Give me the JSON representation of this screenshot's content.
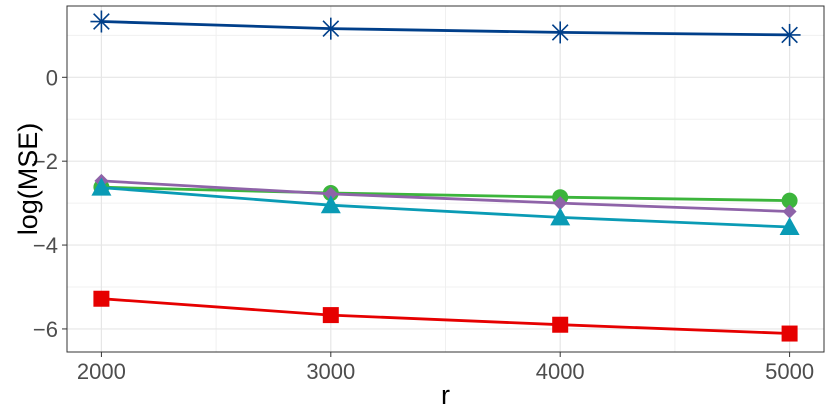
{
  "chart_data": {
    "type": "line",
    "xlabel": "r",
    "ylabel": "log(MSE)",
    "x": [
      2000,
      3000,
      4000,
      5000
    ],
    "xlim": [
      1850,
      5150
    ],
    "ylim": [
      -6.55,
      1.7
    ],
    "x_ticks": [
      2000,
      3000,
      4000,
      5000
    ],
    "y_ticks": [
      -6,
      -4,
      -2,
      0
    ],
    "y_tick_labels": [
      "−6",
      "−4",
      "−2",
      "0"
    ],
    "grid": true,
    "legend": "none",
    "series": [
      {
        "color": "#003f8a",
        "marker": "asterisk",
        "values": [
          1.33,
          1.16,
          1.07,
          1.01
        ]
      },
      {
        "color": "#3cb53c",
        "marker": "circle",
        "values": [
          -2.62,
          -2.76,
          -2.86,
          -2.94
        ]
      },
      {
        "color": "#8e63a8",
        "marker": "diamond",
        "values": [
          -2.47,
          -2.78,
          -3.0,
          -3.2
        ]
      },
      {
        "color": "#0a9bb5",
        "marker": "triangle",
        "values": [
          -2.63,
          -3.05,
          -3.34,
          -3.57
        ]
      },
      {
        "color": "#e60000",
        "marker": "square",
        "values": [
          -5.28,
          -5.67,
          -5.9,
          -6.11
        ]
      }
    ]
  }
}
